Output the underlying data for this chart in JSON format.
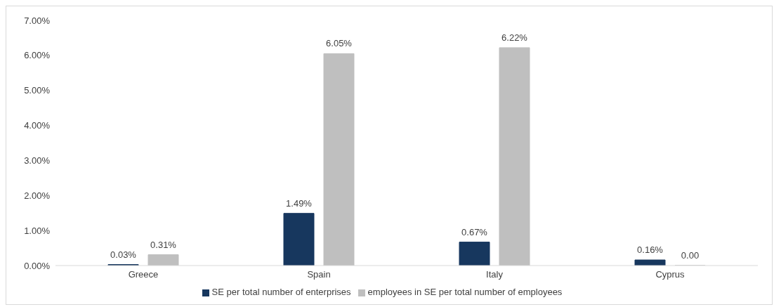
{
  "chart_data": {
    "type": "bar",
    "categories": [
      "Greece",
      "Spain",
      "Italy",
      "Cyprus"
    ],
    "series": [
      {
        "name": "SE per total number of enterprises",
        "color": "#17375e",
        "values": [
          0.03,
          1.49,
          0.67,
          0.16
        ],
        "value_labels": [
          "0.03%",
          "1.49%",
          "0.67%",
          "0.16%"
        ]
      },
      {
        "name": "employees in SE per total number of employees",
        "color": "#bfbfbf",
        "values": [
          0.31,
          6.05,
          6.22,
          0.0
        ],
        "value_labels": [
          "0.31%",
          "6.05%",
          "6.22%",
          "0.00"
        ]
      }
    ],
    "ylim": [
      0,
      7
    ],
    "yticks": [
      {
        "value": 0,
        "label": "0.00%"
      },
      {
        "value": 1,
        "label": "1.00%"
      },
      {
        "value": 2,
        "label": "2.00%"
      },
      {
        "value": 3,
        "label": "3.00%"
      },
      {
        "value": 4,
        "label": "4.00%"
      },
      {
        "value": 5,
        "label": "5.00%"
      },
      {
        "value": 6,
        "label": "6.00%"
      },
      {
        "value": 7,
        "label": "7.00%"
      }
    ],
    "grid": false,
    "legend": "bottom"
  }
}
